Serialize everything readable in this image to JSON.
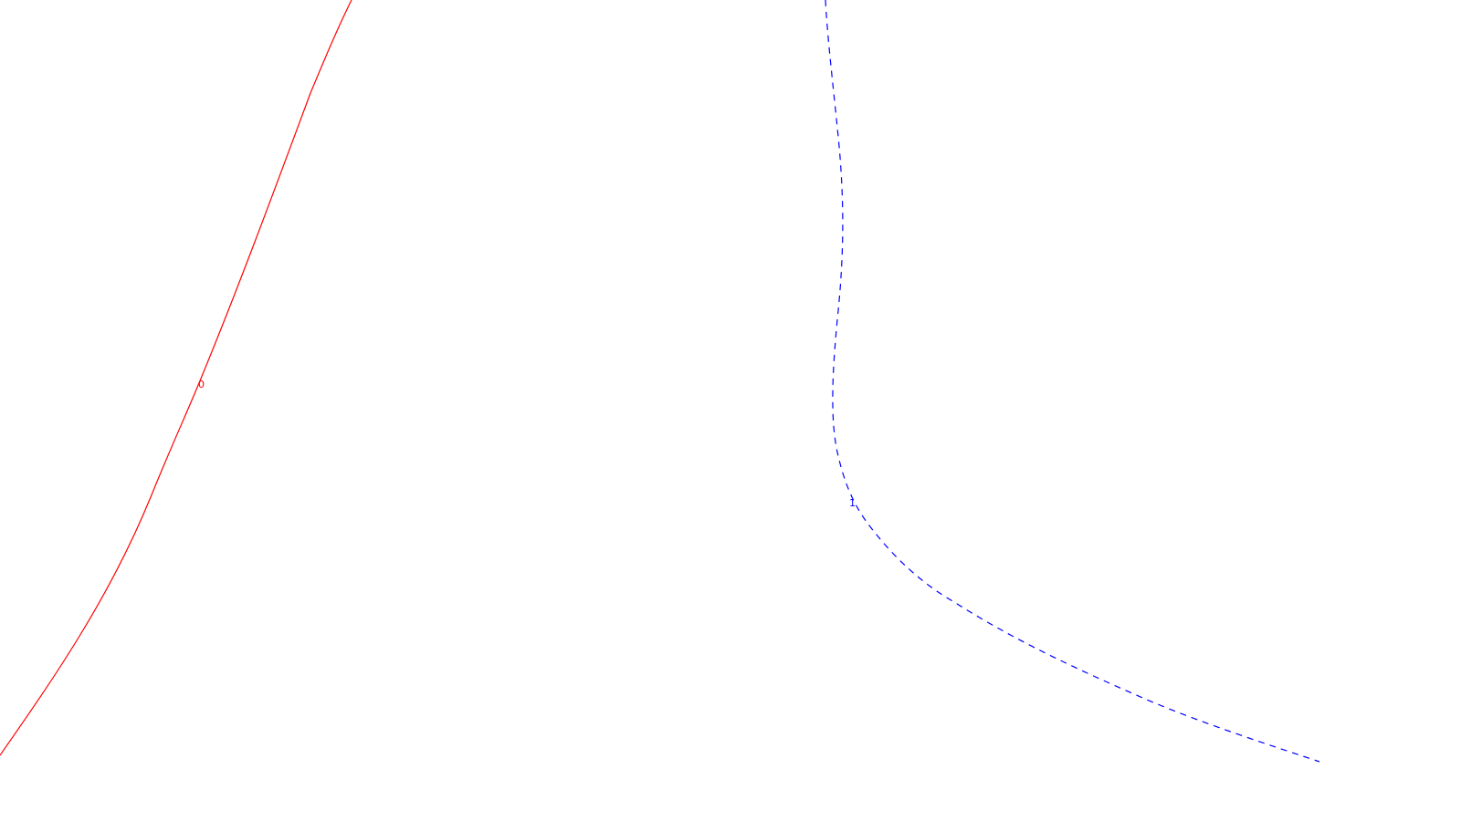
{
  "curves": [
    {
      "name": "red-solid-curve",
      "color": "#ff0000",
      "style": "solid",
      "label": "0"
    },
    {
      "name": "blue-dashed-curve",
      "color": "#0000ff",
      "style": "dashed",
      "label": "1"
    }
  ]
}
